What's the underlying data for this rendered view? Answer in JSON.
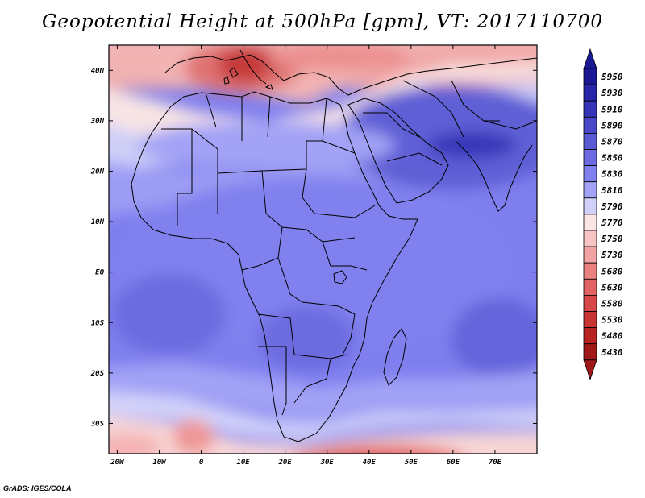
{
  "title": "Geopotential Height at 500hPa [gpm], VT: 2017110700",
  "credit": "GrADS: IGES/COLA",
  "map": {
    "lon_range": [
      -22,
      80
    ],
    "lat_range": [
      -36,
      45
    ],
    "lat_labels": [
      {
        "value": 40,
        "label": "40N"
      },
      {
        "value": 30,
        "label": "30N"
      },
      {
        "value": 20,
        "label": "20N"
      },
      {
        "value": 10,
        "label": "10N"
      },
      {
        "value": 0,
        "label": "EQ"
      },
      {
        "value": -10,
        "label": "10S"
      },
      {
        "value": -20,
        "label": "20S"
      },
      {
        "value": -30,
        "label": "30S"
      }
    ],
    "lon_labels": [
      {
        "value": -20,
        "label": "20W"
      },
      {
        "value": -10,
        "label": "10W"
      },
      {
        "value": 0,
        "label": "0"
      },
      {
        "value": 10,
        "label": "10E"
      },
      {
        "value": 20,
        "label": "20E"
      },
      {
        "value": 30,
        "label": "30E"
      },
      {
        "value": 40,
        "label": "40E"
      },
      {
        "value": 50,
        "label": "50E"
      },
      {
        "value": 60,
        "label": "60E"
      },
      {
        "value": 70,
        "label": "70E"
      }
    ],
    "field_features": [
      {
        "name": "trough-mediterranean",
        "lon": 10,
        "lat": 41,
        "value": 5680
      },
      {
        "name": "low-southwest-atlantic",
        "lon": -1,
        "lat": -33,
        "value": 5730
      },
      {
        "name": "trough-south-of-africa",
        "lon": 38,
        "lat": -37,
        "value": 5580
      },
      {
        "name": "high-arabia-india",
        "lon": 62,
        "lat": 24,
        "value": 5910
      }
    ]
  },
  "colorbar": {
    "levels": [
      "5950",
      "5930",
      "5910",
      "5890",
      "5870",
      "5850",
      "5830",
      "5810",
      "5790",
      "5770",
      "5750",
      "5730",
      "5680",
      "5630",
      "5580",
      "5530",
      "5480",
      "5430"
    ],
    "colors": [
      "#1a1894",
      "#2726a8",
      "#3535b8",
      "#4848c8",
      "#5a5ad4",
      "#6c6ce0",
      "#8080ee",
      "#a2a2f6",
      "#d0d0f8",
      "#fbe6e6",
      "#f7c4c4",
      "#f2a3a3",
      "#ea8282",
      "#e26363",
      "#d84848",
      "#c93434",
      "#b82424",
      "#a01818"
    ],
    "top_color": "#1a1894",
    "bottom_color": "#a01818"
  }
}
